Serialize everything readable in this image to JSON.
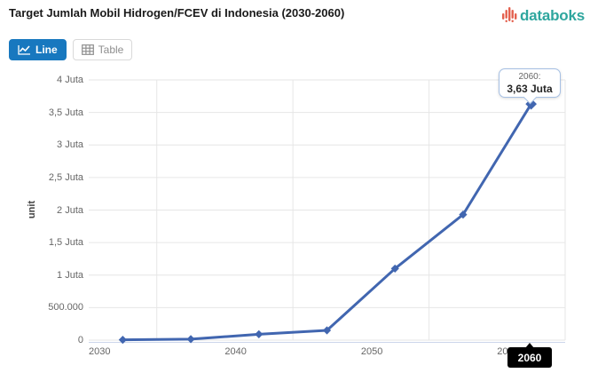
{
  "header": {
    "title": "Target Jumlah Mobil Hidrogen/FCEV di Indonesia (2030-2060)",
    "brand": {
      "name": "databoks",
      "word_color": "#2EA69E",
      "icon_color": "#E4604E"
    }
  },
  "toolbar": {
    "line_label": "Line",
    "table_label": "Table",
    "active_color": "#1878BF"
  },
  "chart_data": {
    "type": "line",
    "title": "Target Jumlah Mobil Hidrogen/FCEV di Indonesia (2030-2060)",
    "xlabel": "",
    "ylabel": "unit",
    "categories": [
      "2030",
      "2035",
      "2040",
      "2045",
      "2050",
      "2055",
      "2060"
    ],
    "values": [
      5000,
      15000,
      90000,
      150000,
      1100000,
      1930000,
      3630000
    ],
    "x_tick_labels": [
      "2030",
      "2040",
      "2050",
      "2060"
    ],
    "y_tick_labels": [
      "0",
      "500.000",
      "1 Juta",
      "1,5 Juta",
      "2 Juta",
      "2,5 Juta",
      "3 Juta",
      "3,5 Juta",
      "4 Juta"
    ],
    "y_tick_step": 500000,
    "ylim": [
      0,
      4000000
    ],
    "grid": true,
    "legend": "none",
    "line_color": "#4166B0",
    "gridline_color": "#E6E6E6",
    "axisline_color": "#CCD6EB"
  },
  "tooltip": {
    "year_line": "2060:",
    "value_line": "3,63 Juta"
  },
  "crosshair_label": {
    "text": "2060"
  }
}
